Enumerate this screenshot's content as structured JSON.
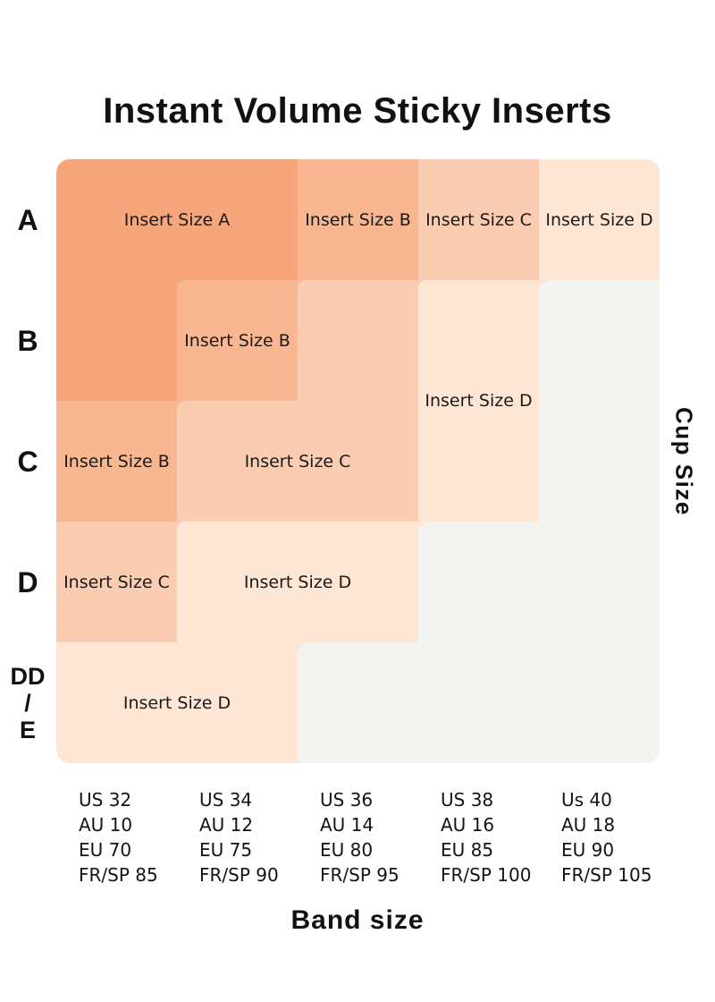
{
  "title": "Instant Volume Sticky Inserts",
  "axes": {
    "y_title": "Cup Size",
    "x_title": "Band size"
  },
  "colors": {
    "insert_a": "#F6A67A",
    "insert_b": "#F8B791",
    "insert_c": "#FACDB3",
    "insert_d": "#FDE6D4",
    "empty": "#F3F3F2",
    "text": "#111111",
    "background": "#FFFFFF"
  },
  "chart_data": {
    "type": "heatmap",
    "title": "Instant Volume Sticky Inserts",
    "x_axis_title": "Band size",
    "y_axis_title": "Cup Size",
    "rows": [
      "A",
      "B",
      "C",
      "D",
      "DD/E"
    ],
    "row_label_lines": [
      [
        "A"
      ],
      [
        "B"
      ],
      [
        "C"
      ],
      [
        "D"
      ],
      [
        "DD",
        "/",
        "E"
      ]
    ],
    "columns": [
      [
        "US 32",
        "AU 10",
        "EU 70",
        "FR/SP 85"
      ],
      [
        "US 34",
        "AU 12",
        "EU 75",
        "FR/SP 90"
      ],
      [
        "US 36",
        "AU 14",
        "EU 80",
        "FR/SP 95"
      ],
      [
        "US 38",
        "AU 16",
        "EU 85",
        "FR/SP 100"
      ],
      [
        "Us 40",
        "AU 18",
        "EU 90",
        "FR/SP 105"
      ]
    ],
    "matrix": [
      [
        "A",
        "A",
        "B",
        "C",
        "D"
      ],
      [
        "A",
        "B",
        "C",
        "D",
        null
      ],
      [
        "B",
        "C",
        "C",
        "D",
        null
      ],
      [
        "C",
        "D",
        "D",
        null,
        null
      ],
      [
        "D",
        "D",
        null,
        null,
        null
      ]
    ],
    "region_labels": [
      {
        "text": "Insert Size A",
        "rows": [
          0
        ],
        "cols": [
          0,
          1
        ]
      },
      {
        "text": "Insert Size B",
        "rows": [
          0
        ],
        "cols": [
          2
        ]
      },
      {
        "text": "Insert Size C",
        "rows": [
          0
        ],
        "cols": [
          3
        ]
      },
      {
        "text": "Insert Size D",
        "rows": [
          0
        ],
        "cols": [
          4
        ]
      },
      {
        "text": "Insert Size B",
        "rows": [
          1
        ],
        "cols": [
          1
        ]
      },
      {
        "text": "Insert Size D",
        "rows": [
          1,
          2
        ],
        "cols": [
          3
        ]
      },
      {
        "text": "Insert Size B",
        "rows": [
          2
        ],
        "cols": [
          0
        ]
      },
      {
        "text": "Insert Size C",
        "rows": [
          2
        ],
        "cols": [
          1,
          2
        ]
      },
      {
        "text": "Insert Size C",
        "rows": [
          3
        ],
        "cols": [
          0
        ]
      },
      {
        "text": "Insert Size D",
        "rows": [
          3
        ],
        "cols": [
          1,
          2
        ]
      },
      {
        "text": "Insert Size D",
        "rows": [
          4
        ],
        "cols": [
          0,
          1
        ]
      }
    ]
  }
}
